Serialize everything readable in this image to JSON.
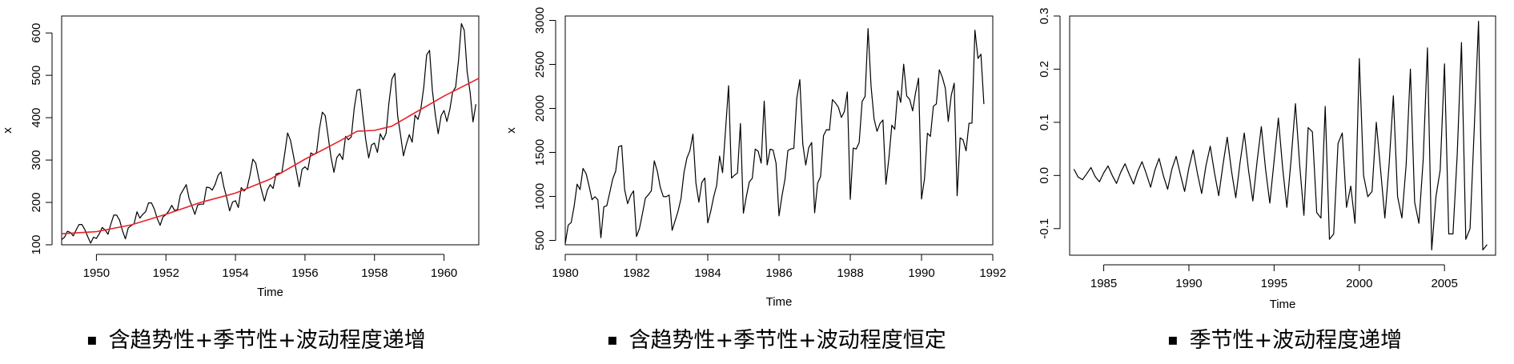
{
  "chart_data": [
    {
      "type": "line",
      "title": "",
      "xlabel": "Time",
      "ylabel": "x",
      "xlim": [
        1949,
        1961
      ],
      "ylim": [
        100,
        640
      ],
      "xticks": [
        1950,
        1952,
        1954,
        1956,
        1958,
        1960
      ],
      "yticks": [
        100,
        200,
        300,
        400,
        500,
        600
      ],
      "grid": false,
      "series": [
        {
          "color": "#000000",
          "x_start": 1949,
          "x_step": 0.0833333,
          "values": [
            112,
            118,
            132,
            129,
            121,
            135,
            148,
            148,
            136,
            119,
            104,
            118,
            115,
            126,
            141,
            135,
            125,
            149,
            170,
            170,
            158,
            133,
            114,
            140,
            145,
            150,
            178,
            163,
            172,
            178,
            199,
            199,
            184,
            162,
            146,
            166,
            171,
            180,
            193,
            181,
            183,
            218,
            230,
            242,
            209,
            191,
            172,
            194,
            196,
            196,
            236,
            235,
            229,
            243,
            264,
            272,
            237,
            211,
            180,
            201,
            204,
            188,
            235,
            227,
            234,
            264,
            302,
            293,
            259,
            229,
            203,
            229,
            242,
            233,
            267,
            269,
            270,
            315,
            364,
            347,
            312,
            274,
            237,
            278,
            284,
            277,
            317,
            313,
            318,
            374,
            413,
            405,
            355,
            306,
            271,
            306,
            315,
            301,
            356,
            348,
            355,
            422,
            465,
            467,
            404,
            347,
            305,
            336,
            340,
            318,
            362,
            348,
            363,
            435,
            491,
            505,
            404,
            359,
            310,
            337,
            360,
            342,
            406,
            396,
            420,
            472,
            548,
            559,
            463,
            407,
            362,
            405,
            417,
            391,
            419,
            461,
            472,
            535,
            622,
            606,
            508,
            461,
            390,
            432
          ]
        },
        {
          "color": "#e8202a",
          "x": [
            1949,
            1950,
            1951,
            1952,
            1953,
            1954,
            1955,
            1956,
            1957,
            1957.5,
            1958,
            1958.5,
            1959,
            1960,
            1961
          ],
          "values": [
            126,
            131,
            147,
            172,
            200,
            222,
            255,
            302,
            345,
            368,
            370,
            380,
            404,
            451,
            493
          ]
        }
      ]
    },
    {
      "type": "line",
      "title": "",
      "xlabel": "Time",
      "ylabel": "x",
      "xlim": [
        1980,
        1992
      ],
      "ylim": [
        450,
        3050
      ],
      "xticks": [
        1980,
        1982,
        1984,
        1986,
        1988,
        1990,
        1992
      ],
      "yticks": [
        500,
        1000,
        1500,
        2000,
        2500,
        3000
      ],
      "grid": false,
      "series": [
        {
          "color": "#000000",
          "x_start": 1980,
          "x_step": 0.0833333,
          "values": [
            464,
            675,
            703,
            887,
            1139,
            1077,
            1318,
            1260,
            1120,
            963,
            996,
            960,
            530,
            883,
            894,
            1045,
            1199,
            1287,
            1565,
            1577,
            1076,
            918,
            1008,
            1063,
            544,
            635,
            804,
            980,
            1018,
            1064,
            1404,
            1286,
            1104,
            999,
            996,
            1015,
            615,
            722,
            832,
            977,
            1270,
            1437,
            1520,
            1708,
            1151,
            934,
            1159,
            1209,
            699,
            830,
            996,
            1124,
            1458,
            1270,
            1753,
            2258,
            1208,
            1241,
            1265,
            1828,
            809,
            997,
            1164,
            1205,
            1538,
            1513,
            1378,
            2083,
            1357,
            1536,
            1526,
            1376,
            779,
            1005,
            1193,
            1522,
            1539,
            1546,
            2116,
            2326,
            1596,
            1356,
            1553,
            1613,
            814,
            1150,
            1225,
            1691,
            1759,
            1754,
            2100,
            2062,
            2012,
            1897,
            1964,
            2186,
            966,
            1549,
            1538,
            1612,
            2078,
            2137,
            2907,
            2249,
            1883,
            1739,
            1828,
            1868,
            1138,
            1430,
            1809,
            1763,
            2200,
            2067,
            2503,
            2141,
            2103,
            1972,
            2181,
            2344,
            970,
            1199,
            1718,
            1683,
            2025,
            2051,
            2439,
            2353,
            2230,
            1852,
            2147,
            2286,
            1007,
            1665,
            1642,
            1518,
            1831,
            1833,
            2889,
            2568,
            2616,
            2049
          ]
        }
      ]
    },
    {
      "type": "line",
      "title": "",
      "xlabel": "Time",
      "ylabel": "",
      "xlim": [
        1983,
        2008
      ],
      "ylim": [
        -0.15,
        0.3
      ],
      "xticks": [
        1985,
        1990,
        1995,
        2000,
        2005
      ],
      "yticks": [
        -0.1,
        0.0,
        0.1,
        0.2,
        0.3
      ],
      "ytick_labels": [
        "-0.1",
        "0.0",
        "0.1",
        "0.2",
        "0.3"
      ],
      "grid": false,
      "series": [
        {
          "color": "#000000",
          "x_start": 1983.25,
          "x_step": 0.25,
          "values": [
            0.012,
            -0.003,
            -0.008,
            0.003,
            0.015,
            -0.002,
            -0.012,
            0.005,
            0.018,
            0.0,
            -0.015,
            0.006,
            0.022,
            0.002,
            -0.016,
            0.008,
            0.026,
            0.003,
            -0.022,
            0.01,
            0.032,
            0.0,
            -0.026,
            0.012,
            0.036,
            0.002,
            -0.03,
            0.015,
            0.048,
            0.004,
            -0.034,
            0.018,
            0.055,
            0.005,
            -0.038,
            0.02,
            0.072,
            0.008,
            -0.042,
            0.024,
            0.08,
            0.01,
            -0.048,
            0.026,
            0.092,
            0.012,
            -0.052,
            0.028,
            0.108,
            0.015,
            -0.06,
            0.03,
            0.135,
            0.02,
            -0.075,
            0.09,
            0.082,
            -0.07,
            -0.08,
            0.13,
            -0.12,
            -0.11,
            0.06,
            0.08,
            -0.06,
            -0.02,
            -0.09,
            0.22,
            0.0,
            -0.04,
            -0.03,
            0.1,
            0.01,
            -0.08,
            0.02,
            0.15,
            -0.04,
            -0.08,
            0.02,
            0.2,
            -0.05,
            -0.09,
            0.03,
            0.24,
            -0.14,
            -0.04,
            0.01,
            0.21,
            -0.11,
            -0.11,
            0.04,
            0.25,
            -0.12,
            -0.1,
            0.09,
            0.29,
            -0.14,
            -0.13
          ]
        }
      ]
    }
  ],
  "captions": [
    {
      "bullet": "▪",
      "text": "含趋势性+季节性+波动程度递增"
    },
    {
      "bullet": "▪",
      "text": "含趋势性+季节性+波动程度恒定"
    },
    {
      "bullet": "▪",
      "text": "季节性+波动程度递增"
    }
  ]
}
